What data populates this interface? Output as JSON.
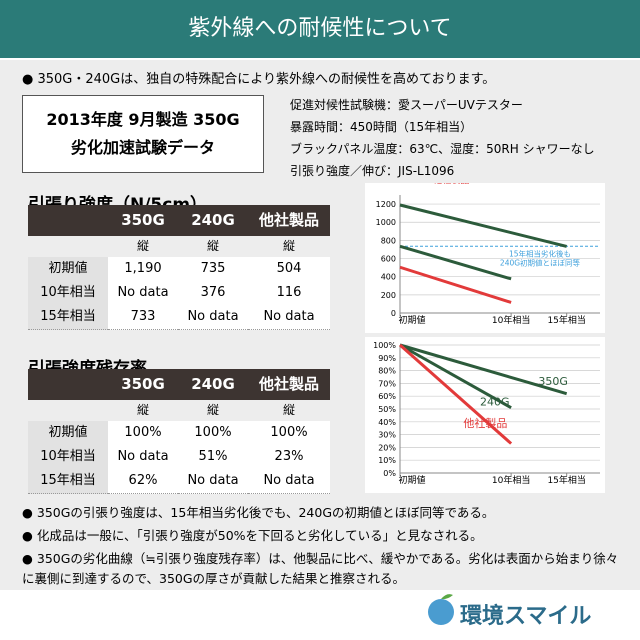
{
  "header": {
    "title": "紫外線への耐候性について"
  },
  "intro": "● 350G・240Gは、独自の特殊配合により紫外線への耐候性を高めております。",
  "test_box": {
    "lines": [
      "2013年度 9月製造 350G",
      "劣化加速試験データ"
    ]
  },
  "conditions": [
    "促進対候性試験機：愛スーパーUVテスター",
    "暴露時間：450時間（15年相当）",
    "ブラックパネル温度：63℃、湿度：50RH シャワーなし",
    "引張り強度／伸び：JIS-L1096"
  ],
  "tables": [
    {
      "title": "引張り強度（N/5cm）",
      "columns": [
        "350G",
        "240G",
        "他社製品"
      ],
      "sub": [
        "縦",
        "縦",
        "縦"
      ],
      "rows": [
        {
          "label": "初期値",
          "cells": [
            "1,190",
            "735",
            "504"
          ]
        },
        {
          "label": "10年相当",
          "cells": [
            "No data",
            "376",
            "116"
          ]
        },
        {
          "label": "15年相当",
          "cells": [
            "733",
            "No data",
            "No data"
          ]
        }
      ]
    },
    {
      "title": "引張強度残存率",
      "columns": [
        "350G",
        "240G",
        "他社製品"
      ],
      "sub": [
        "縦",
        "縦",
        "縦"
      ],
      "rows": [
        {
          "label": "初期値",
          "cells": [
            "100%",
            "100%",
            "100%"
          ]
        },
        {
          "label": "10年相当",
          "cells": [
            "No data",
            "51%",
            "23%"
          ]
        },
        {
          "label": "15年相当",
          "cells": [
            "62%",
            "No data",
            "No data"
          ]
        }
      ]
    }
  ],
  "charts": [
    {
      "type": "line",
      "xlim": [
        0,
        18
      ],
      "xticks": [
        {
          "value": 0,
          "label": "初期値"
        },
        {
          "value": 10,
          "label": "10年相当"
        },
        {
          "value": 15,
          "label": "15年相当"
        }
      ],
      "ylim": [
        0,
        1300
      ],
      "yticks": [
        0,
        200,
        400,
        600,
        800,
        1000,
        1200
      ],
      "grid": true,
      "series": [
        {
          "name": "350G",
          "color": "#2c5b3b",
          "x": [
            0,
            15
          ],
          "values": [
            1190,
            733
          ]
        },
        {
          "name": "240G",
          "color": "#2c5b3b",
          "x": [
            0,
            10
          ],
          "values": [
            735,
            376
          ]
        },
        {
          "name": "他社製品",
          "color": "#e23a3a",
          "x": [
            0,
            10
          ],
          "values": [
            504,
            116
          ]
        }
      ],
      "reference": {
        "value": 735,
        "color": "#3fa0dc",
        "label": [
          "15年相当劣化後も",
          "240G初期値とほぼ同等"
        ]
      }
    },
    {
      "type": "line",
      "xlim": [
        0,
        18
      ],
      "xticks": [
        {
          "value": 0,
          "label": "初期値"
        },
        {
          "value": 10,
          "label": "10年相当"
        },
        {
          "value": 15,
          "label": "15年相当"
        }
      ],
      "ylim": [
        0,
        100
      ],
      "yticks": [
        {
          "value": 0,
          "label": "0%"
        },
        {
          "value": 10,
          "label": "10%"
        },
        {
          "value": 20,
          "label": "20%"
        },
        {
          "value": 30,
          "label": "30%"
        },
        {
          "value": 40,
          "label": "40%"
        },
        {
          "value": 50,
          "label": "50%"
        },
        {
          "value": 60,
          "label": "60%"
        },
        {
          "value": 70,
          "label": "70%"
        },
        {
          "value": 80,
          "label": "80%"
        },
        {
          "value": 90,
          "label": "90%"
        },
        {
          "value": 100,
          "label": "100%"
        }
      ],
      "grid": true,
      "series": [
        {
          "name": "350G",
          "color": "#2c5b3b",
          "x": [
            0,
            15
          ],
          "values": [
            100,
            62
          ]
        },
        {
          "name": "240G",
          "color": "#2c5b3b",
          "x": [
            0,
            10
          ],
          "values": [
            100,
            51
          ]
        },
        {
          "name": "他社製品",
          "color": "#e23a3a",
          "x": [
            0,
            10
          ],
          "values": [
            100,
            23
          ]
        }
      ]
    }
  ],
  "notes": [
    "● 350Gの引張り強度は、15年相当劣化後でも、240Gの初期値とほぼ同等である。",
    "● 化成品は一般に、「引張り強度が50%を下回ると劣化している」と見なされる。",
    "● 350Gの劣化曲線（≒引張り強度残存率）は、他製品に比べ、緩やかである。劣化は表面から始まり徐々に裏側に到達するので、350Gの厚さが貢献した結果と推察される。"
  ],
  "logo": "環境スマイル"
}
